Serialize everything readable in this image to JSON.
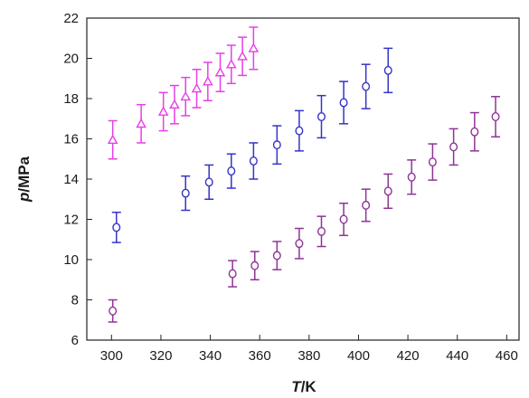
{
  "chart_data": {
    "type": "scatter",
    "title": "",
    "xlabel_italic": "T",
    "xlabel_unit": "/K",
    "ylabel_italic": "p",
    "ylabel_unit": "/MPa",
    "xlim": [
      290,
      465
    ],
    "ylim": [
      6,
      22
    ],
    "xticks": [
      300,
      320,
      340,
      360,
      380,
      400,
      420,
      440,
      460
    ],
    "yticks": [
      6,
      8,
      10,
      12,
      14,
      16,
      18,
      20,
      22
    ],
    "grid": false,
    "legend": "none",
    "series": [
      {
        "marker": "triangle",
        "color": "#e83ee8",
        "points": [
          {
            "x": 300.5,
            "y": 15.95,
            "err": 0.95
          },
          {
            "x": 312,
            "y": 16.75,
            "err": 0.95
          },
          {
            "x": 321,
            "y": 17.35,
            "err": 0.95
          },
          {
            "x": 325.5,
            "y": 17.7,
            "err": 0.95
          },
          {
            "x": 330,
            "y": 18.1,
            "err": 0.95
          },
          {
            "x": 334.5,
            "y": 18.5,
            "err": 0.95
          },
          {
            "x": 339,
            "y": 18.85,
            "err": 0.95
          },
          {
            "x": 344,
            "y": 19.3,
            "err": 0.95
          },
          {
            "x": 348.5,
            "y": 19.7,
            "err": 0.95
          },
          {
            "x": 353,
            "y": 20.1,
            "err": 0.95
          },
          {
            "x": 357.5,
            "y": 20.5,
            "err": 1.05
          }
        ]
      },
      {
        "marker": "circle",
        "color": "#3434c8",
        "points": [
          {
            "x": 302,
            "y": 11.6,
            "err": 0.75
          },
          {
            "x": 330,
            "y": 13.3,
            "err": 0.85
          },
          {
            "x": 339.5,
            "y": 13.85,
            "err": 0.85
          },
          {
            "x": 348.5,
            "y": 14.4,
            "err": 0.85
          },
          {
            "x": 357.5,
            "y": 14.9,
            "err": 0.9
          },
          {
            "x": 367,
            "y": 15.7,
            "err": 0.95
          },
          {
            "x": 376,
            "y": 16.4,
            "err": 1.0
          },
          {
            "x": 385,
            "y": 17.1,
            "err": 1.05
          },
          {
            "x": 394,
            "y": 17.8,
            "err": 1.05
          },
          {
            "x": 403,
            "y": 18.6,
            "err": 1.1
          },
          {
            "x": 412,
            "y": 19.4,
            "err": 1.1
          }
        ]
      },
      {
        "marker": "circle",
        "color": "#8e3496",
        "points": [
          {
            "x": 300.5,
            "y": 7.45,
            "err": 0.55
          },
          {
            "x": 349,
            "y": 9.3,
            "err": 0.65
          },
          {
            "x": 358,
            "y": 9.7,
            "err": 0.7
          },
          {
            "x": 367,
            "y": 10.2,
            "err": 0.7
          },
          {
            "x": 376,
            "y": 10.8,
            "err": 0.75
          },
          {
            "x": 385,
            "y": 11.4,
            "err": 0.75
          },
          {
            "x": 394,
            "y": 12.0,
            "err": 0.8
          },
          {
            "x": 403,
            "y": 12.7,
            "err": 0.8
          },
          {
            "x": 412,
            "y": 13.4,
            "err": 0.85
          },
          {
            "x": 421.5,
            "y": 14.1,
            "err": 0.85
          },
          {
            "x": 430,
            "y": 14.85,
            "err": 0.9
          },
          {
            "x": 438.5,
            "y": 15.6,
            "err": 0.9
          },
          {
            "x": 447,
            "y": 16.35,
            "err": 0.95
          },
          {
            "x": 455.5,
            "y": 17.1,
            "err": 1.0
          }
        ]
      }
    ]
  }
}
